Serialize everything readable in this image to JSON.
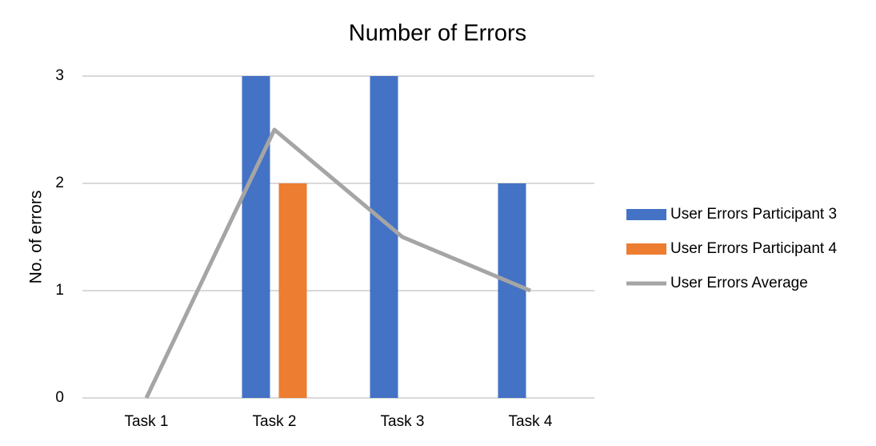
{
  "chart_data": {
    "type": "bar",
    "title": "Number of Errors",
    "y_label": "No. of errors",
    "categories": [
      "Task 1",
      "Task 2",
      "Task 3",
      "Task 4"
    ],
    "series": [
      {
        "name": "User Errors Participant 3",
        "type": "bar",
        "color": "#4472c4",
        "values": [
          0,
          3,
          3,
          2
        ]
      },
      {
        "name": "User Errors Participant 4",
        "type": "bar",
        "color": "#ed7d31",
        "values": [
          0,
          2,
          0,
          0
        ]
      },
      {
        "name": "User Errors Average",
        "type": "line",
        "color": "#a5a5a5",
        "values": [
          0,
          2.5,
          1.5,
          1
        ]
      }
    ],
    "ylim": [
      0,
      3
    ],
    "yticks": [
      0,
      1,
      2,
      3
    ],
    "grid": true,
    "legend": "right"
  }
}
